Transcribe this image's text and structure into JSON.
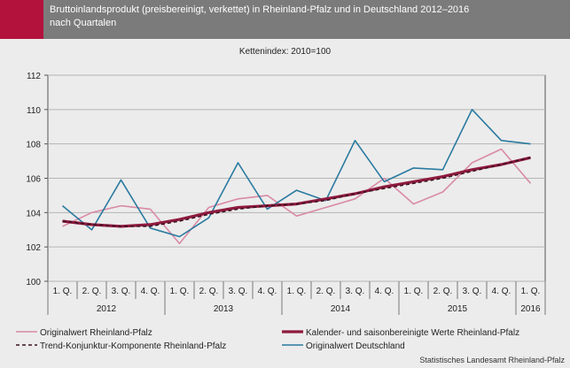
{
  "header": {
    "title": "Bruttoinlandsprodukt (preisbereinigt, verkettet) in Rheinland-Pfalz und in Deutschland 2012–2016\nnach Quartalen",
    "accent_color": "#b3123d",
    "band_color": "#7b7b7b"
  },
  "footer": {
    "source": "Statistisches Landesamt Rheinland-Pfalz"
  },
  "chart_data": {
    "type": "line",
    "title": "Bruttoinlandsprodukt (preisbereinigt, verkettet) in Rheinland-Pfalz und in Deutschland 2012–2016 nach Quartalen",
    "subtitle": "Kettenindex: 2010=100",
    "ylim": [
      100,
      112
    ],
    "yticks": [
      100,
      102,
      104,
      106,
      108,
      110,
      112
    ],
    "grid": true,
    "legend_placement": "bottom",
    "quarters": [
      "1. Q.",
      "2. Q.",
      "3. Q.",
      "4. Q.",
      "1. Q.",
      "2. Q.",
      "3. Q.",
      "4. Q.",
      "1. Q.",
      "2. Q.",
      "3. Q.",
      "4. Q.",
      "1. Q.",
      "2. Q.",
      "3. Q.",
      "4. Q.",
      "1. Q."
    ],
    "years": [
      {
        "label": "2012",
        "span": 4
      },
      {
        "label": "2013",
        "span": 4
      },
      {
        "label": "2014",
        "span": 4
      },
      {
        "label": "2015",
        "span": 4
      },
      {
        "label": "2016",
        "span": 1
      }
    ],
    "series": [
      {
        "name": "Originalwert Rheinland-Pfalz",
        "color": "#d98aa6",
        "style": "solid",
        "values": [
          103.2,
          104.0,
          104.4,
          104.2,
          102.2,
          104.3,
          104.8,
          105.0,
          103.8,
          104.3,
          104.8,
          106.0,
          104.5,
          105.2,
          106.9,
          107.7,
          105.7
        ]
      },
      {
        "name": "Kalender- und saisonbereinigte Werte Rheinland-Pfalz",
        "color": "#8e1a3e",
        "style": "thick",
        "values": [
          103.5,
          103.3,
          103.2,
          103.3,
          103.6,
          104.0,
          104.3,
          104.4,
          104.5,
          104.8,
          105.1,
          105.5,
          105.8,
          106.1,
          106.5,
          106.8,
          107.2
        ]
      },
      {
        "name": "Trend-Konjunktur-Komponente Rheinland-Pfalz",
        "color": "#3a1020",
        "style": "dashed",
        "values": [
          103.5,
          103.3,
          103.2,
          103.2,
          103.5,
          103.9,
          104.2,
          104.4,
          104.5,
          104.7,
          105.1,
          105.4,
          105.7,
          106.0,
          106.4,
          106.8,
          107.2
        ]
      },
      {
        "name": "Originalwert Deutschland",
        "color": "#2a7aa0",
        "style": "solid",
        "values": [
          104.4,
          103.0,
          105.9,
          103.1,
          102.6,
          103.7,
          106.9,
          104.2,
          105.3,
          104.7,
          108.2,
          105.8,
          106.6,
          106.5,
          110.0,
          108.2,
          108.0
        ]
      }
    ]
  }
}
